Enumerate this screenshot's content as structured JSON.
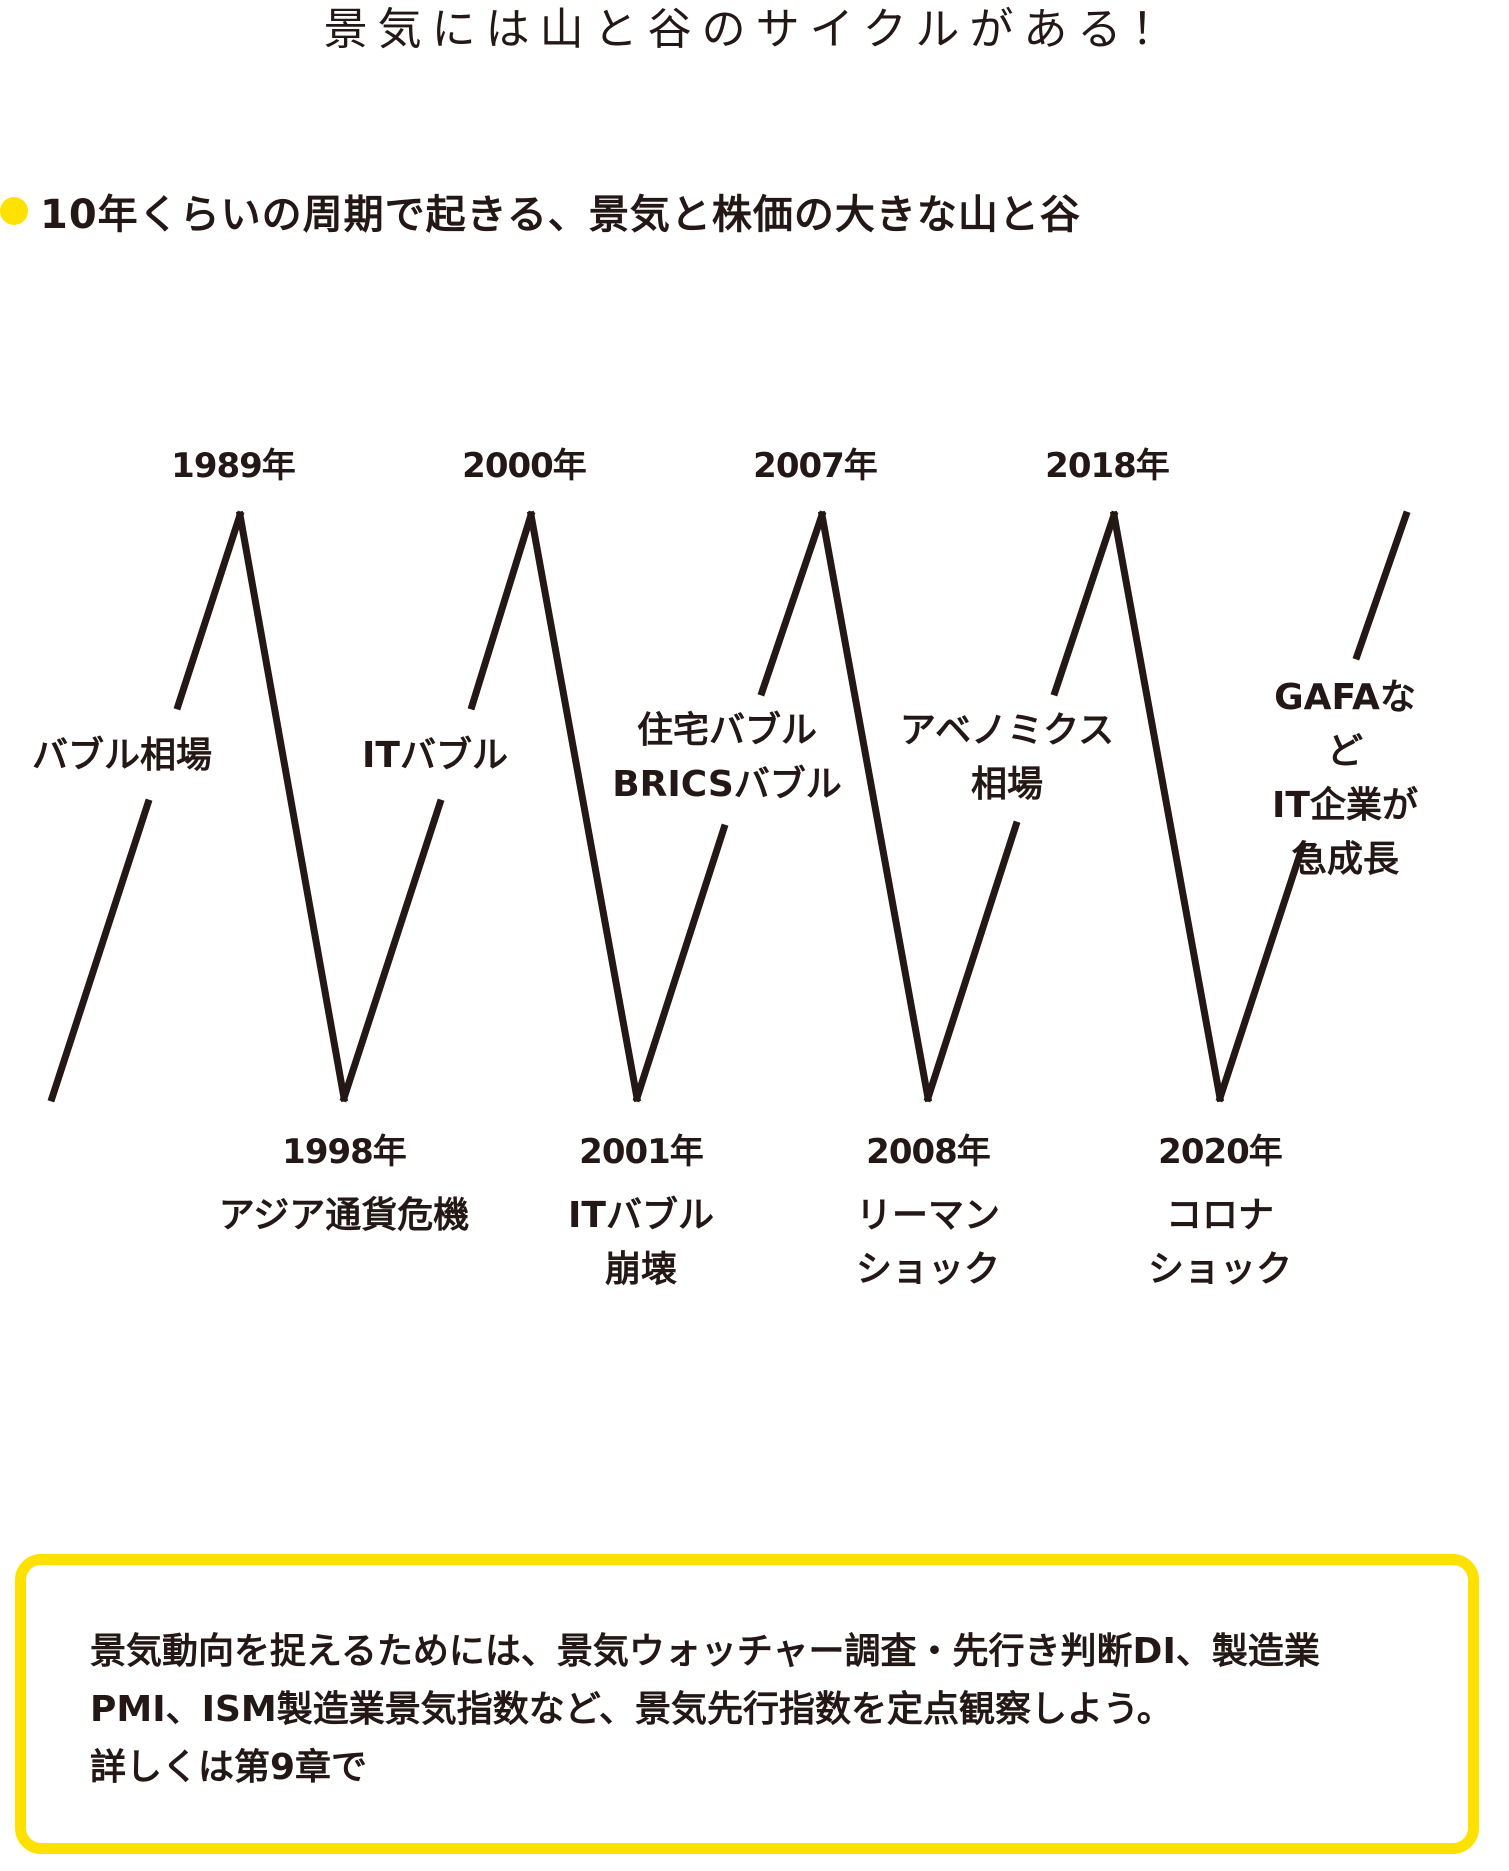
{
  "page_title": "景気には山と谷のサイクルがある！",
  "subtitle": "10年くらいの周期で起きる、景気と株価の大きな山と谷",
  "colors": {
    "accent": "#ffe100",
    "line": "#231815"
  },
  "peaks": [
    {
      "year": "1989年"
    },
    {
      "year": "2000年"
    },
    {
      "year": "2007年"
    },
    {
      "year": "2018年"
    }
  ],
  "troughs": [
    {
      "year": "1998年",
      "event": "アジア通貨危機"
    },
    {
      "year": "2001年",
      "event": "ITバブル\n崩壊"
    },
    {
      "year": "2008年",
      "event": "リーマン\nショック"
    },
    {
      "year": "2020年",
      "event": "コロナ\nショック"
    }
  ],
  "rises": [
    {
      "label": "バブル相場"
    },
    {
      "label": "ITバブル"
    },
    {
      "label": "住宅バブル\nBRICSバブル"
    },
    {
      "label": "アベノミクス\n相場"
    },
    {
      "label": "GAFAなど\nIT企業が\n急成長"
    }
  ],
  "note": {
    "text": "景気動向を捉えるためには、景気ウォッチャー調査・先行き判断DI、製造業\nPMI、ISM製造業景気指数など、景気先行指数を定点観察しよう。\n詳しくは第9章で"
  }
}
